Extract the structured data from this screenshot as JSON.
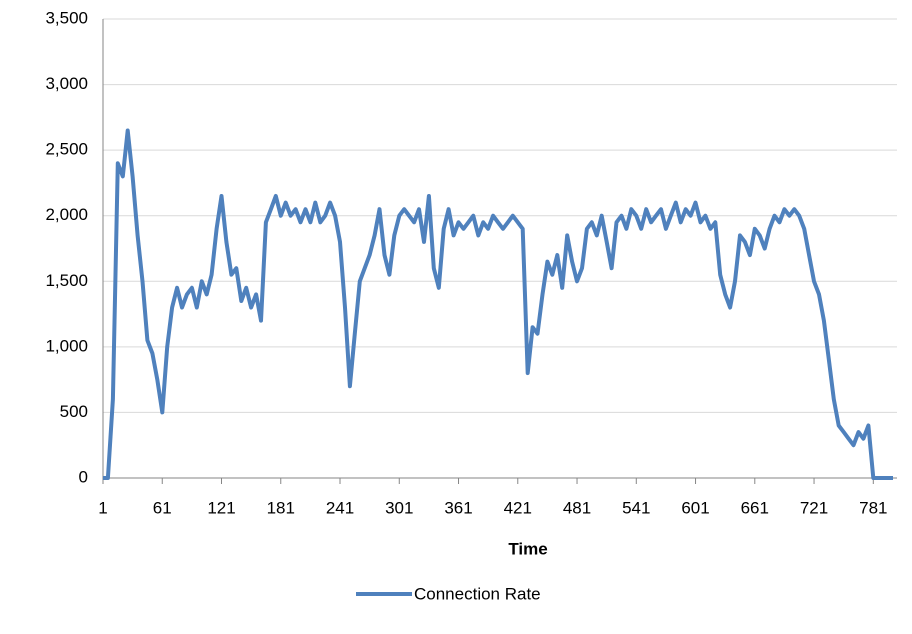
{
  "chart_data": {
    "type": "line",
    "x_label": "Time",
    "x": [
      1,
      6,
      11,
      16,
      21,
      26,
      31,
      36,
      41,
      46,
      51,
      56,
      61,
      66,
      71,
      76,
      81,
      86,
      91,
      96,
      101,
      106,
      111,
      116,
      121,
      126,
      131,
      136,
      141,
      146,
      151,
      156,
      161,
      166,
      171,
      176,
      181,
      186,
      191,
      196,
      201,
      206,
      211,
      216,
      221,
      226,
      231,
      236,
      241,
      246,
      251,
      256,
      261,
      266,
      271,
      276,
      281,
      286,
      291,
      296,
      301,
      306,
      311,
      316,
      321,
      326,
      331,
      336,
      341,
      346,
      351,
      356,
      361,
      366,
      371,
      376,
      381,
      386,
      391,
      396,
      401,
      406,
      411,
      416,
      421,
      426,
      431,
      436,
      441,
      446,
      451,
      456,
      461,
      466,
      471,
      476,
      481,
      486,
      491,
      496,
      501,
      506,
      511,
      516,
      521,
      526,
      531,
      536,
      541,
      546,
      551,
      556,
      561,
      566,
      571,
      576,
      581,
      586,
      591,
      596,
      601,
      606,
      611,
      616,
      621,
      626,
      631,
      636,
      641,
      646,
      651,
      656,
      661,
      666,
      671,
      676,
      681,
      686,
      691,
      696,
      701,
      706,
      711,
      716,
      721,
      726,
      731,
      736,
      741,
      746,
      751,
      756,
      761,
      766,
      771,
      776,
      781,
      786,
      791,
      796,
      801
    ],
    "series": [
      {
        "name": "Connection Rate",
        "color": "#4f81bd",
        "values": [
          0,
          0,
          600,
          2400,
          2300,
          2650,
          2300,
          1850,
          1500,
          1050,
          950,
          750,
          500,
          1000,
          1300,
          1450,
          1300,
          1400,
          1450,
          1300,
          1500,
          1400,
          1550,
          1900,
          2150,
          1800,
          1550,
          1600,
          1350,
          1450,
          1300,
          1400,
          1200,
          1950,
          2050,
          2150,
          2000,
          2100,
          2000,
          2050,
          1950,
          2050,
          1950,
          2100,
          1950,
          2000,
          2100,
          2000,
          1800,
          1300,
          700,
          1100,
          1500,
          1600,
          1700,
          1850,
          2050,
          1700,
          1550,
          1850,
          2000,
          2050,
          2000,
          1950,
          2050,
          1800,
          2150,
          1600,
          1450,
          1900,
          2050,
          1850,
          1950,
          1900,
          1950,
          2000,
          1850,
          1950,
          1900,
          2000,
          1950,
          1900,
          1950,
          2000,
          1950,
          1900,
          800,
          1150,
          1100,
          1400,
          1650,
          1550,
          1700,
          1450,
          1850,
          1650,
          1500,
          1600,
          1900,
          1950,
          1850,
          2000,
          1800,
          1600,
          1950,
          2000,
          1900,
          2050,
          2000,
          1900,
          2050,
          1950,
          2000,
          2050,
          1900,
          2000,
          2100,
          1950,
          2050,
          2000,
          2100,
          1950,
          2000,
          1900,
          1950,
          1550,
          1400,
          1300,
          1500,
          1850,
          1800,
          1700,
          1900,
          1850,
          1750,
          1900,
          2000,
          1950,
          2050,
          2000,
          2050,
          2000,
          1900,
          1700,
          1500,
          1400,
          1200,
          900,
          600,
          400,
          350,
          300,
          250,
          350,
          300,
          400,
          0,
          0,
          0,
          0,
          0
        ]
      }
    ],
    "xlim": [
      1,
      805
    ],
    "xticks": [
      1,
      61,
      121,
      181,
      241,
      301,
      361,
      421,
      481,
      541,
      601,
      661,
      721,
      781
    ],
    "ylim": [
      0,
      3500
    ],
    "yticks": [
      0,
      500,
      {
        "value": 1000,
        "label": "1,000"
      },
      {
        "value": 1500,
        "label": "1,500"
      },
      {
        "value": 2000,
        "label": "2,000"
      },
      {
        "value": 2500,
        "label": "2,500"
      },
      {
        "value": 3000,
        "label": "3,000"
      },
      {
        "value": 3500,
        "label": "3,500"
      }
    ],
    "grid": true,
    "legend": "bottom"
  }
}
